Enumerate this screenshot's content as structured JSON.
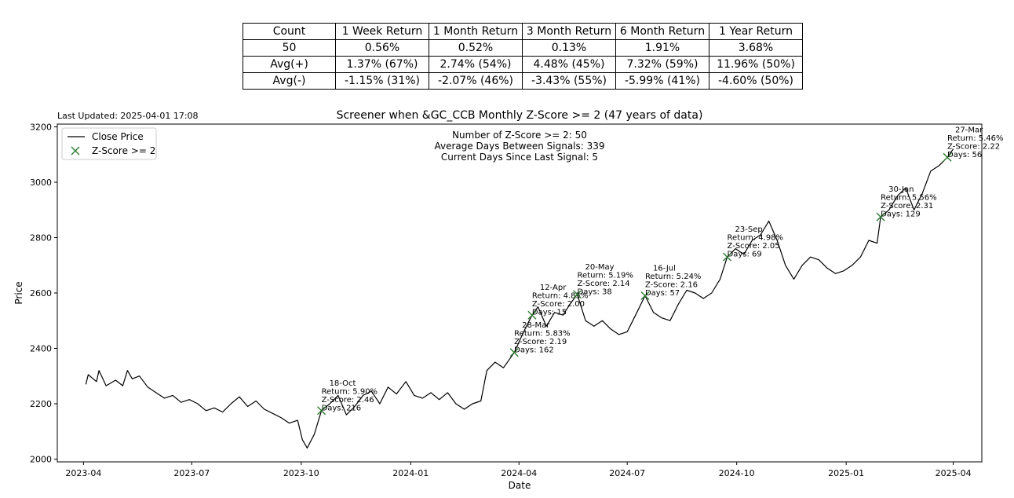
{
  "stats_table": {
    "header": [
      "Count",
      "1 Week Return",
      "1 Month Return",
      "3 Month Return",
      "6 Month Return",
      "1 Year Return"
    ],
    "rows": [
      [
        "50",
        "0.56%",
        "0.52%",
        "0.13%",
        "1.91%",
        "3.68%"
      ],
      [
        "Avg(+)",
        "1.37% (67%)",
        "2.74% (54%)",
        "4.48% (45%)",
        "7.32% (59%)",
        "11.96% (50%)"
      ],
      [
        "Avg(-)",
        "-1.15% (31%)",
        "-2.07% (46%)",
        "-3.43% (55%)",
        "-5.99% (41%)",
        "-4.60% (50%)"
      ]
    ]
  },
  "last_updated": "Last Updated: 2025-04-01 17:08",
  "info_lines": [
    "Number of Z-Score >= 2: 50",
    "Average Days Between Signals: 339",
    "Current Days Since Last Signal: 5"
  ],
  "chart_data": {
    "type": "line",
    "title": "Screener when &GC_CCB Monthly Z-Score >= 2 (47 years of data)",
    "xlabel": "Date",
    "ylabel": "Price",
    "ylim": [
      1990,
      3210
    ],
    "xlim": [
      "2023-03-10",
      "2025-04-25"
    ],
    "grid": false,
    "legend": {
      "placement": "top-left",
      "entries": [
        "Close Price",
        "Z-Score >= 2"
      ]
    },
    "x_ticks": [
      "2023-04",
      "2023-07",
      "2023-10",
      "2024-01",
      "2024-04",
      "2024-07",
      "2024-10",
      "2025-01",
      "2025-04"
    ],
    "y_ticks": [
      2000,
      2200,
      2400,
      2600,
      2800,
      3000,
      3200
    ],
    "colors": {
      "line": "#000000",
      "marker": "#2e7d32"
    },
    "series": [
      {
        "name": "Close Price",
        "points": [
          [
            "2023-04-03",
            2270
          ],
          [
            "2023-04-05",
            2305
          ],
          [
            "2023-04-12",
            2280
          ],
          [
            "2023-04-14",
            2320
          ],
          [
            "2023-04-20",
            2265
          ],
          [
            "2023-04-28",
            2285
          ],
          [
            "2023-05-04",
            2265
          ],
          [
            "2023-05-08",
            2320
          ],
          [
            "2023-05-12",
            2290
          ],
          [
            "2023-05-18",
            2300
          ],
          [
            "2023-05-25",
            2260
          ],
          [
            "2023-06-01",
            2240
          ],
          [
            "2023-06-08",
            2220
          ],
          [
            "2023-06-15",
            2230
          ],
          [
            "2023-06-22",
            2205
          ],
          [
            "2023-06-29",
            2215
          ],
          [
            "2023-07-06",
            2200
          ],
          [
            "2023-07-13",
            2175
          ],
          [
            "2023-07-20",
            2185
          ],
          [
            "2023-07-27",
            2170
          ],
          [
            "2023-08-03",
            2200
          ],
          [
            "2023-08-10",
            2225
          ],
          [
            "2023-08-17",
            2190
          ],
          [
            "2023-08-24",
            2210
          ],
          [
            "2023-08-31",
            2180
          ],
          [
            "2023-09-07",
            2165
          ],
          [
            "2023-09-14",
            2150
          ],
          [
            "2023-09-21",
            2130
          ],
          [
            "2023-09-28",
            2140
          ],
          [
            "2023-10-02",
            2070
          ],
          [
            "2023-10-06",
            2040
          ],
          [
            "2023-10-12",
            2090
          ],
          [
            "2023-10-18",
            2175
          ],
          [
            "2023-10-25",
            2200
          ],
          [
            "2023-11-01",
            2230
          ],
          [
            "2023-11-08",
            2160
          ],
          [
            "2023-11-15",
            2190
          ],
          [
            "2023-11-22",
            2230
          ],
          [
            "2023-11-29",
            2245
          ],
          [
            "2023-12-06",
            2200
          ],
          [
            "2023-12-13",
            2260
          ],
          [
            "2023-12-20",
            2235
          ],
          [
            "2023-12-28",
            2280
          ],
          [
            "2024-01-04",
            2230
          ],
          [
            "2024-01-11",
            2220
          ],
          [
            "2024-01-18",
            2240
          ],
          [
            "2024-01-25",
            2215
          ],
          [
            "2024-02-01",
            2240
          ],
          [
            "2024-02-08",
            2200
          ],
          [
            "2024-02-15",
            2180
          ],
          [
            "2024-02-22",
            2200
          ],
          [
            "2024-02-29",
            2210
          ],
          [
            "2024-03-05",
            2320
          ],
          [
            "2024-03-12",
            2350
          ],
          [
            "2024-03-19",
            2330
          ],
          [
            "2024-03-28",
            2385
          ],
          [
            "2024-04-05",
            2460
          ],
          [
            "2024-04-12",
            2520
          ],
          [
            "2024-04-17",
            2550
          ],
          [
            "2024-04-24",
            2480
          ],
          [
            "2024-05-01",
            2530
          ],
          [
            "2024-05-08",
            2520
          ],
          [
            "2024-05-14",
            2560
          ],
          [
            "2024-05-20",
            2595
          ],
          [
            "2024-05-27",
            2500
          ],
          [
            "2024-06-03",
            2480
          ],
          [
            "2024-06-10",
            2500
          ],
          [
            "2024-06-17",
            2470
          ],
          [
            "2024-06-24",
            2450
          ],
          [
            "2024-07-01",
            2460
          ],
          [
            "2024-07-08",
            2520
          ],
          [
            "2024-07-16",
            2590
          ],
          [
            "2024-07-23",
            2530
          ],
          [
            "2024-07-30",
            2510
          ],
          [
            "2024-08-06",
            2500
          ],
          [
            "2024-08-13",
            2560
          ],
          [
            "2024-08-20",
            2610
          ],
          [
            "2024-08-27",
            2600
          ],
          [
            "2024-09-03",
            2580
          ],
          [
            "2024-09-10",
            2600
          ],
          [
            "2024-09-17",
            2650
          ],
          [
            "2024-09-23",
            2730
          ],
          [
            "2024-09-30",
            2760
          ],
          [
            "2024-10-07",
            2740
          ],
          [
            "2024-10-14",
            2790
          ],
          [
            "2024-10-21",
            2810
          ],
          [
            "2024-10-28",
            2860
          ],
          [
            "2024-11-04",
            2790
          ],
          [
            "2024-11-11",
            2700
          ],
          [
            "2024-11-18",
            2650
          ],
          [
            "2024-11-25",
            2700
          ],
          [
            "2024-12-02",
            2730
          ],
          [
            "2024-12-09",
            2720
          ],
          [
            "2024-12-16",
            2690
          ],
          [
            "2024-12-23",
            2670
          ],
          [
            "2024-12-30",
            2680
          ],
          [
            "2025-01-06",
            2700
          ],
          [
            "2025-01-13",
            2730
          ],
          [
            "2025-01-20",
            2790
          ],
          [
            "2025-01-27",
            2780
          ],
          [
            "2025-01-30",
            2875
          ],
          [
            "2025-02-06",
            2900
          ],
          [
            "2025-02-13",
            2950
          ],
          [
            "2025-02-20",
            2980
          ],
          [
            "2025-02-27",
            2900
          ],
          [
            "2025-03-06",
            2960
          ],
          [
            "2025-03-13",
            3040
          ],
          [
            "2025-03-20",
            3060
          ],
          [
            "2025-03-27",
            3090
          ],
          [
            "2025-04-01",
            3120
          ]
        ]
      }
    ],
    "signals": [
      {
        "date": "2023-10-18",
        "y": 2175,
        "lines": [
          "18-Oct",
          "Return: 5.90%",
          "Z-Score: 2.46",
          "Days: 216"
        ]
      },
      {
        "date": "2024-03-28",
        "y": 2385,
        "lines": [
          "28-Mar",
          "Return: 5.83%",
          "Z-Score: 2.19",
          "Days: 162"
        ]
      },
      {
        "date": "2024-04-12",
        "y": 2520,
        "lines": [
          "12-Apr",
          "Return: 4.85%",
          "Z-Score: 2.00",
          "Days: 15"
        ]
      },
      {
        "date": "2024-05-20",
        "y": 2595,
        "lines": [
          "20-May",
          "Return: 5.19%",
          "Z-Score: 2.14",
          "Days: 38"
        ]
      },
      {
        "date": "2024-07-16",
        "y": 2590,
        "lines": [
          "16-Jul",
          "Return: 5.24%",
          "Z-Score: 2.16",
          "Days: 57"
        ]
      },
      {
        "date": "2024-09-23",
        "y": 2730,
        "lines": [
          "23-Sep",
          "Return: 4.98%",
          "Z-Score: 2.05",
          "Days: 69"
        ]
      },
      {
        "date": "2025-01-30",
        "y": 2875,
        "lines": [
          "30-Jan",
          "Return: 5.56%",
          "Z-Score: 2.31",
          "Days: 129"
        ]
      },
      {
        "date": "2025-03-27",
        "y": 3090,
        "lines": [
          "27-Mar",
          "Return: 5.46%",
          "Z-Score: 2.22",
          "Days: 56"
        ]
      }
    ]
  }
}
